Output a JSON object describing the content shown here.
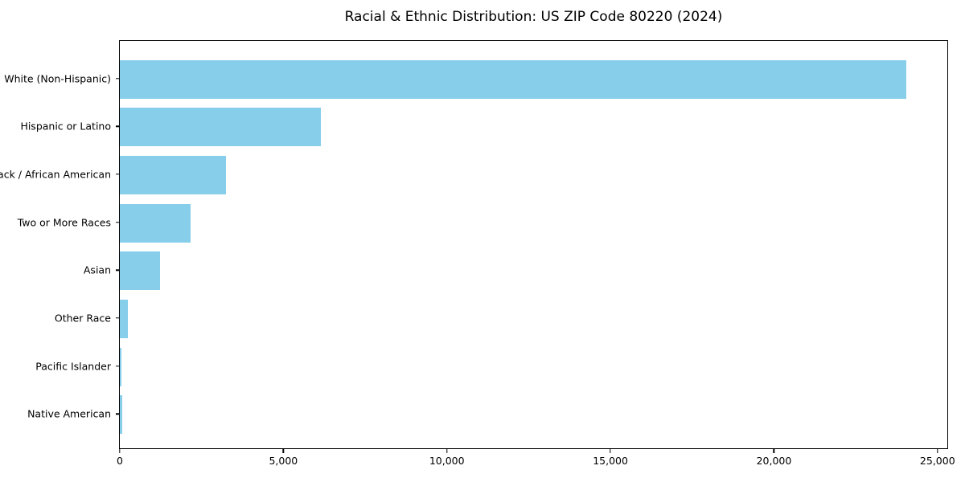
{
  "chart_data": {
    "type": "bar",
    "orientation": "horizontal",
    "title": "Racial & Ethnic Distribution: US ZIP Code 80220 (2024)",
    "categories": [
      "White (Non-Hispanic)",
      "Hispanic or Latino",
      "Black / African American",
      "Two or More Races",
      "Asian",
      "Other Race",
      "Pacific Islander",
      "Native American"
    ],
    "values": [
      24050,
      6150,
      3240,
      2160,
      1220,
      250,
      50,
      75
    ],
    "xlabel": "",
    "ylabel": "",
    "xlim": [
      0,
      25300
    ],
    "x_ticks": {
      "values": [
        0,
        5000,
        10000,
        15000,
        20000,
        25000
      ],
      "labels": [
        "0",
        "5,000",
        "10,000",
        "15,000",
        "20,000",
        "25,000"
      ]
    },
    "bar_color": "#87CEEB",
    "grid": false,
    "legend_position": "none"
  }
}
